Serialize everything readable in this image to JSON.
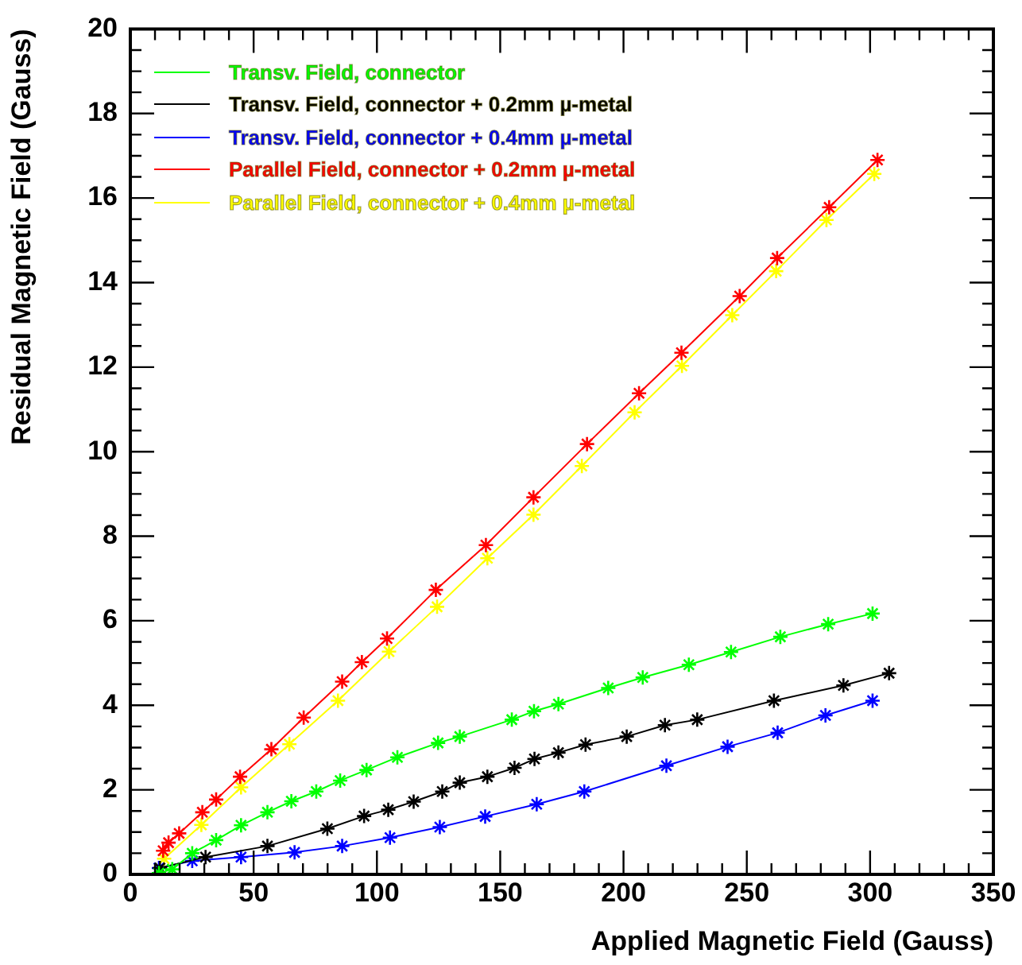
{
  "chart_data": {
    "type": "line",
    "xlabel": "Applied Magnetic Field (Gauss)",
    "ylabel": "Residual Magnetic Field (Gauss)",
    "xlim": [
      0,
      350
    ],
    "xticks": [
      0,
      50,
      100,
      150,
      200,
      250,
      300,
      350
    ],
    "ylim": [
      0,
      20
    ],
    "yticks": [
      0,
      2,
      4,
      6,
      8,
      10,
      12,
      14,
      16,
      18,
      20
    ],
    "grid": false,
    "legend": "top left",
    "marker": "cross",
    "line_style": "solid",
    "series": [
      {
        "name": "Transv. Field, connector",
        "color": "#00ff00",
        "x": [
          11.6,
          17,
          25.1,
          34.8,
          44.9,
          55.6,
          65.3,
          75.4,
          85.1,
          95.8,
          108.3,
          124.8,
          133.6,
          154.7,
          163.7,
          173.6,
          193.8,
          207.8,
          226.5,
          243.6,
          263.6,
          283,
          301
        ],
        "values": [
          0.03,
          0.12,
          0.5,
          0.81,
          1.16,
          1.47,
          1.73,
          1.96,
          2.22,
          2.47,
          2.77,
          3.11,
          3.26,
          3.66,
          3.86,
          4.03,
          4.41,
          4.66,
          4.96,
          5.26,
          5.62,
          5.92,
          6.17
        ]
      },
      {
        "name": "Transv. Field, connector + 0.2mm µ-metal",
        "color": "#000000",
        "x": [
          12,
          30.5,
          55.6,
          79.9,
          94.8,
          104.6,
          114.9,
          126.5,
          133.6,
          144.8,
          155.8,
          163.9,
          173.6,
          184.6,
          201.3,
          216.8,
          229.9,
          261,
          289.2,
          307.7
        ],
        "values": [
          0.15,
          0.41,
          0.67,
          1.08,
          1.38,
          1.53,
          1.72,
          1.96,
          2.17,
          2.31,
          2.52,
          2.73,
          2.88,
          3.07,
          3.26,
          3.53,
          3.66,
          4.11,
          4.47,
          4.76
        ]
      },
      {
        "name": "Transv. Field, connector + 0.4mm µ-metal",
        "color": "#0000ff",
        "x": [
          11.6,
          25.1,
          44.9,
          66.6,
          85.9,
          105.3,
          125.5,
          143.9,
          164.8,
          184.1,
          217.4,
          242.2,
          262.5,
          281.9,
          301
        ],
        "values": [
          0.15,
          0.32,
          0.41,
          0.52,
          0.67,
          0.87,
          1.12,
          1.37,
          1.66,
          1.96,
          2.57,
          3.02,
          3.35,
          3.76,
          4.11
        ]
      },
      {
        "name": "Parallel Field, connector + 0.2mm µ-metal",
        "color": "#ff0000",
        "x": [
          13.3,
          15.5,
          19.8,
          29.2,
          34.8,
          44.5,
          57.2,
          70.3,
          85.9,
          93.9,
          104.1,
          123.9,
          144.2,
          163.5,
          185.2,
          206.3,
          223.5,
          247.1,
          262.3,
          283.4,
          303
        ],
        "values": [
          0.56,
          0.75,
          0.97,
          1.47,
          1.77,
          2.31,
          2.96,
          3.71,
          4.56,
          5.02,
          5.58,
          6.73,
          7.79,
          8.92,
          10.18,
          11.38,
          12.34,
          13.68,
          14.58,
          15.78,
          16.9
        ]
      },
      {
        "name": "Parallel Field, connector + 0.4mm µ-metal",
        "color": "#ffff00",
        "x": [
          13.7,
          28.8,
          44.9,
          64.5,
          84.2,
          104.9,
          124.4,
          144.8,
          163.5,
          183.1,
          204.5,
          223.7,
          244.1,
          261.9,
          282.3,
          301.7
        ],
        "values": [
          0.37,
          1.17,
          2.06,
          3.08,
          4.11,
          5.27,
          6.33,
          7.48,
          8.51,
          9.66,
          10.93,
          12.03,
          13.23,
          14.27,
          15.48,
          16.57
        ]
      }
    ]
  }
}
